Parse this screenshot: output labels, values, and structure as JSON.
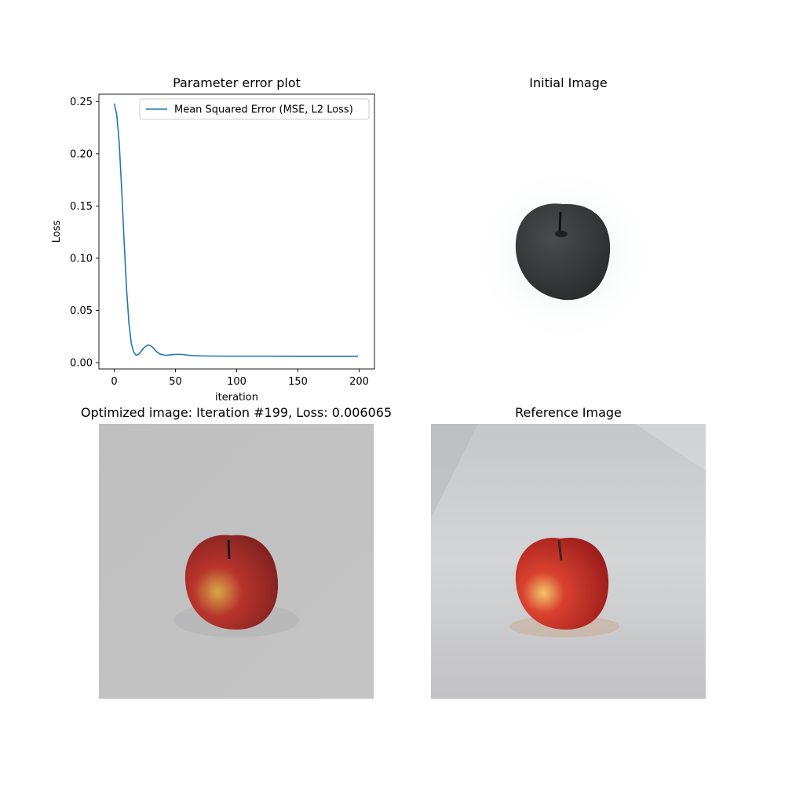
{
  "panels": {
    "plot_title": "Parameter error plot",
    "initial_title": "Initial Image",
    "optimized_title": "Optimized image: Iteration #199, Loss: 0.006065",
    "reference_title": "Reference Image"
  },
  "chart_data": {
    "type": "line",
    "title": "Parameter error plot",
    "xlabel": "iteration",
    "ylabel": "Loss",
    "xlim": [
      -12.5,
      212.5
    ],
    "ylim": [
      -0.006,
      0.257
    ],
    "xticks": [
      0,
      50,
      100,
      150,
      200
    ],
    "yticks": [
      0.0,
      0.05,
      0.1,
      0.15,
      0.2,
      0.25
    ],
    "ytick_labels": [
      "0.00",
      "0.05",
      "0.10",
      "0.15",
      "0.20",
      "0.25"
    ],
    "legend_position": "upper right",
    "grid": false,
    "series": [
      {
        "name": "Mean Squared Error (MSE, L2 Loss)",
        "color": "#1f77b4",
        "x": [
          0,
          2,
          4,
          6,
          8,
          10,
          12,
          14,
          16,
          18,
          20,
          22,
          24,
          26,
          28,
          30,
          32,
          35,
          38,
          42,
          46,
          50,
          55,
          60,
          65,
          70,
          80,
          100,
          120,
          150,
          175,
          199
        ],
        "y": [
          0.248,
          0.238,
          0.212,
          0.168,
          0.118,
          0.072,
          0.038,
          0.018,
          0.01,
          0.007,
          0.008,
          0.011,
          0.014,
          0.016,
          0.017,
          0.016,
          0.014,
          0.01,
          0.008,
          0.007,
          0.0075,
          0.008,
          0.008,
          0.0072,
          0.0067,
          0.0065,
          0.0063,
          0.0062,
          0.0062,
          0.0061,
          0.0061,
          0.006065
        ]
      }
    ]
  },
  "colors": {
    "line": "#1f77b4",
    "apple_red": "#b8322a",
    "apple_dark": "#3a3a3a",
    "background_gray": "#bcbdbf"
  }
}
